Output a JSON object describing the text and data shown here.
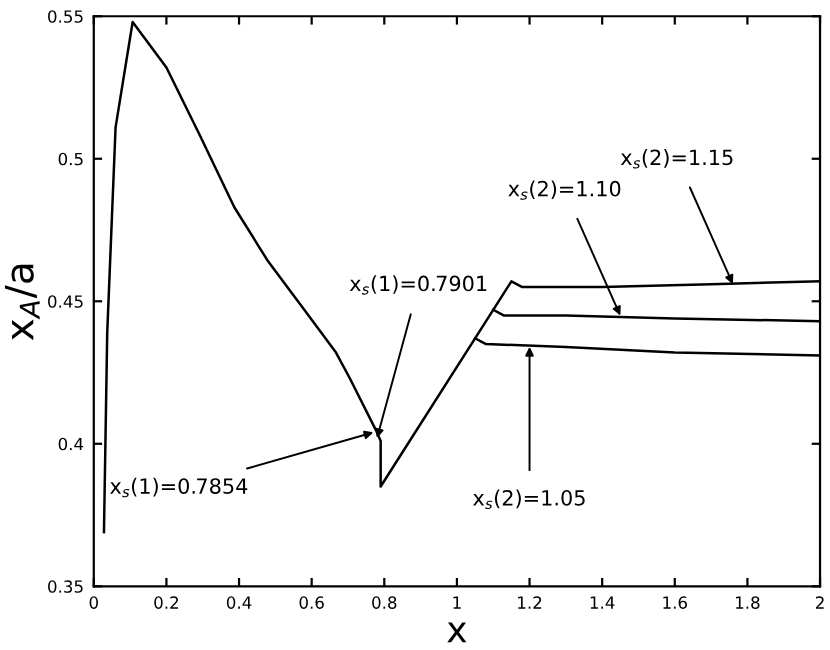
{
  "chart_data": {
    "type": "line",
    "xlabel": "x",
    "ylabel": "x$_{A}$/a",
    "xlim": [
      0,
      2
    ],
    "ylim": [
      0.35,
      0.55
    ],
    "xticks": [
      0,
      0.2,
      0.4,
      0.6,
      0.8,
      1,
      1.2,
      1.4,
      1.6,
      1.8,
      2
    ],
    "yticks": [
      0.35,
      0.4,
      0.45,
      0.5,
      0.55
    ],
    "grid": false,
    "marker": "none",
    "line_style": "solid",
    "series": [
      {
        "color": "#000000",
        "x": [
          0.028,
          0.037,
          0.06,
          0.107,
          0.2,
          0.293,
          0.387,
          0.48,
          0.574,
          0.667,
          0.705,
          0.78,
          0.79,
          0.79,
          1.05,
          1.1,
          1.15,
          1.18,
          1.4,
          1.7,
          2
        ],
        "values": [
          0.369,
          0.439,
          0.511,
          0.548,
          0.532,
          0.508,
          0.483,
          0.464,
          0.448,
          0.432,
          0.423,
          0.404,
          0.401,
          0.385,
          0.437,
          0.447,
          0.457,
          0.455,
          0.455,
          0.456,
          0.457
        ]
      },
      {
        "color": "#000000",
        "x": [
          1.1,
          1.13,
          1.3,
          1.6,
          2
        ],
        "values": [
          0.447,
          0.445,
          0.445,
          0.444,
          0.443
        ]
      },
      {
        "color": "#000000",
        "x": [
          1.05,
          1.08,
          1.3,
          1.6,
          2
        ],
        "values": [
          0.437,
          0.435,
          0.434,
          0.432,
          0.431
        ]
      }
    ],
    "annotations": [
      {
        "text": "x$_{s}$(1)=0.7854",
        "x": 0.77,
        "y": 0.404
      },
      {
        "text": "x$_{s}$(1)=0.7901",
        "x": 0.78,
        "y": 0.402
      },
      {
        "text": "x$_{s}$(2)=1.05",
        "x": 1.2,
        "y": 0.434
      },
      {
        "text": "x$_{s}$(2)=1.10",
        "x": 1.45,
        "y": 0.445
      },
      {
        "text": "x$_{s}$(2)=1.15",
        "x": 1.76,
        "y": 0.456
      }
    ]
  }
}
